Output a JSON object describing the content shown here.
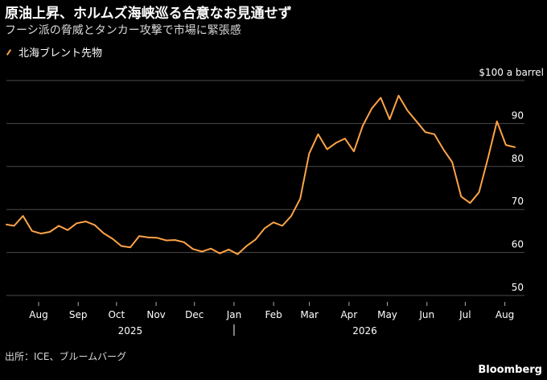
{
  "title": "原油上昇、ホルムズ海峡巡る合意なお見通せず",
  "subtitle": "フーシ派の脅威とタンカー攻撃で市場に緊張感",
  "source": "出所：ICE、ブルームバーグ",
  "brand": "Bloomberg",
  "chart_data": {
    "type": "line",
    "title": "原油上昇、ホルムズ海峡巡る合意なお見通せず",
    "subtitle": "フーシ派の脅威とタンカー攻撃で市場に緊張感",
    "xlabel": "",
    "ylabel": "",
    "y_unit_label": "$100 a barrel",
    "ylim": [
      45,
      100
    ],
    "y_ticks": [
      50,
      60,
      70,
      80,
      90
    ],
    "y_ticks_gridlines": [
      50,
      60,
      70,
      80,
      90,
      100
    ],
    "grid": true,
    "legend_placement": "top-left",
    "x_tick_labels": [
      "Aug",
      "Sep",
      "Oct",
      "Nov",
      "Dec",
      "Jan",
      "Feb",
      "Mar",
      "Apr",
      "May",
      "Jun",
      "Jul",
      "Aug"
    ],
    "x_year_labels": [
      "2025",
      "2026"
    ],
    "colors": {
      "series": "#ffa347",
      "grid": "#4a4a4a",
      "background": "#000000"
    },
    "series": [
      {
        "name": "北海ブレント先物",
        "x": [
          "2025-07-15",
          "2025-07-21",
          "2025-07-28",
          "2025-08-04",
          "2025-08-11",
          "2025-08-18",
          "2025-08-25",
          "2025-09-01",
          "2025-09-08",
          "2025-09-15",
          "2025-09-22",
          "2025-09-29",
          "2025-10-06",
          "2025-10-13",
          "2025-10-20",
          "2025-10-27",
          "2025-11-03",
          "2025-11-10",
          "2025-11-17",
          "2025-11-24",
          "2025-12-01",
          "2025-12-08",
          "2025-12-15",
          "2025-12-22",
          "2025-12-29",
          "2026-01-05",
          "2026-01-12",
          "2026-01-19",
          "2026-01-26",
          "2026-02-02",
          "2026-02-09",
          "2026-02-16",
          "2026-02-23",
          "2026-03-02",
          "2026-03-09",
          "2026-03-16",
          "2026-03-23",
          "2026-03-30",
          "2026-04-06",
          "2026-04-13",
          "2026-04-20",
          "2026-04-27",
          "2026-05-04",
          "2026-05-11",
          "2026-05-18",
          "2026-05-25",
          "2026-06-01",
          "2026-06-08",
          "2026-06-15",
          "2026-06-22",
          "2026-06-29",
          "2026-07-06",
          "2026-07-13",
          "2026-07-20",
          "2026-07-27",
          "2026-08-03",
          "2026-08-10",
          "2026-08-17"
        ],
        "values": [
          66.5,
          66.2,
          68.5,
          65.0,
          64.4,
          64.8,
          66.2,
          65.2,
          66.8,
          67.2,
          66.4,
          64.5,
          63.2,
          61.5,
          61.2,
          63.8,
          63.5,
          63.4,
          62.8,
          62.9,
          62.4,
          60.8,
          60.2,
          60.9,
          59.8,
          60.7,
          59.6,
          61.5,
          63.0,
          65.6,
          67.0,
          66.2,
          68.5,
          72.5,
          83.0,
          87.5,
          84.0,
          85.5,
          86.5,
          83.5,
          89.5,
          93.5,
          96.0,
          91.0,
          96.5,
          93.0,
          90.5,
          88.0,
          87.5,
          84.0,
          81.0,
          73.0,
          71.5,
          74.0,
          82.0,
          90.5,
          85.0,
          84.5
        ]
      }
    ]
  }
}
